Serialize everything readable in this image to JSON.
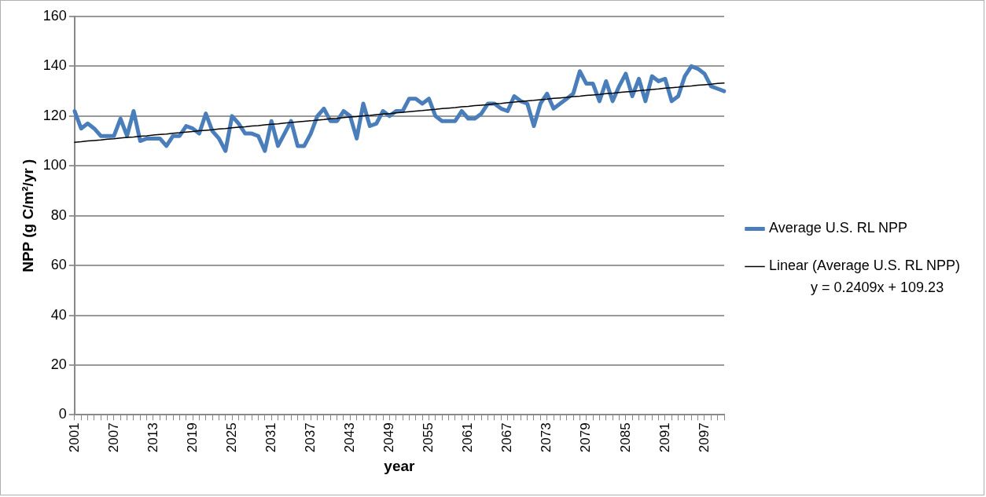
{
  "chart_data": {
    "type": "line",
    "xlabel": "year",
    "ylabel": "NPP (g C/m²/yr )",
    "categories": [
      "2001",
      null,
      null,
      null,
      null,
      null,
      "2007",
      null,
      null,
      null,
      null,
      null,
      "2013",
      null,
      null,
      null,
      null,
      null,
      "2019",
      null,
      null,
      null,
      null,
      null,
      "2025",
      null,
      null,
      null,
      null,
      null,
      "2031",
      null,
      null,
      null,
      null,
      null,
      "2037",
      null,
      null,
      null,
      null,
      null,
      "2043",
      null,
      null,
      null,
      null,
      null,
      "2049",
      null,
      null,
      null,
      null,
      null,
      "2055",
      null,
      null,
      null,
      null,
      null,
      "2061",
      null,
      null,
      null,
      null,
      null,
      "2067",
      null,
      null,
      null,
      null,
      null,
      "2073",
      null,
      null,
      null,
      null,
      null,
      "2079",
      null,
      null,
      null,
      null,
      null,
      "2085",
      null,
      null,
      null,
      null,
      null,
      "2091",
      null,
      null,
      null,
      null,
      null,
      "2097",
      null,
      null,
      null
    ],
    "series": [
      {
        "name": "Average U.S. RL NPP",
        "color": "#4a7ebb",
        "values": [
          122,
          115,
          117,
          115,
          112,
          112,
          112,
          119,
          112,
          122,
          110,
          111,
          111,
          111,
          108,
          112,
          112,
          116,
          115,
          113,
          121,
          114,
          111,
          106,
          120,
          117,
          113,
          113,
          112,
          106,
          118,
          108,
          113,
          118,
          108,
          108,
          113,
          120,
          123,
          118,
          118,
          122,
          120,
          111,
          125,
          116,
          117,
          122,
          120,
          122,
          122,
          127,
          127,
          125,
          127,
          120,
          118,
          118,
          118,
          122,
          119,
          119,
          121,
          125,
          125,
          123,
          122,
          128,
          126,
          125,
          116,
          125,
          129,
          123,
          125,
          127,
          129,
          138,
          133,
          133,
          126,
          134,
          126,
          132,
          137,
          128,
          135,
          126,
          136,
          134,
          135,
          126,
          128,
          136,
          140,
          139,
          137,
          132,
          131,
          130
        ]
      },
      {
        "name": "Linear (Average U.S. RL NPP)",
        "type": "line",
        "color": "#000000",
        "values": [
          109.5,
          109.7,
          110.0,
          110.2,
          110.4,
          110.7,
          110.9,
          111.2,
          111.4,
          111.6,
          111.9,
          112.1,
          112.4,
          112.6,
          112.8,
          113.1,
          113.3,
          113.6,
          113.8,
          114.1,
          114.3,
          114.5,
          114.8,
          115.0,
          115.3,
          115.5,
          115.7,
          116.0,
          116.2,
          116.5,
          116.7,
          116.9,
          117.2,
          117.4,
          117.7,
          117.9,
          118.1,
          118.4,
          118.6,
          118.9,
          119.1,
          119.4,
          119.6,
          119.8,
          120.1,
          120.3,
          120.6,
          120.8,
          121.0,
          121.3,
          121.5,
          121.8,
          122.0,
          122.2,
          122.5,
          122.7,
          123.0,
          123.2,
          123.4,
          123.7,
          123.9,
          124.2,
          124.4,
          124.6,
          124.9,
          125.1,
          125.4,
          125.6,
          125.9,
          126.1,
          126.3,
          126.6,
          126.8,
          127.1,
          127.3,
          127.5,
          127.8,
          128.0,
          128.3,
          128.5,
          128.7,
          129.0,
          129.2,
          129.5,
          129.7,
          129.9,
          130.2,
          130.4,
          130.7,
          130.9,
          131.2,
          131.4,
          131.6,
          131.9,
          132.1,
          132.4,
          132.6,
          132.8,
          133.1,
          133.3
        ]
      }
    ],
    "ylim": [
      0,
      160
    ],
    "yticks": [
      0,
      20,
      40,
      60,
      80,
      100,
      120,
      140,
      160
    ],
    "grid": "y",
    "legend": "right",
    "marker": "none",
    "annotations": [
      "y = 0.2409x + 109.23"
    ]
  }
}
